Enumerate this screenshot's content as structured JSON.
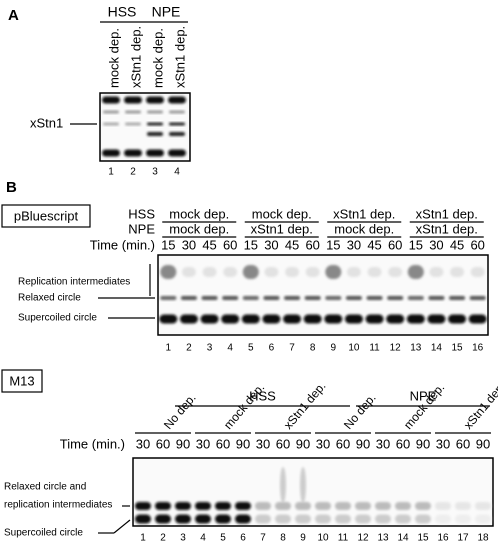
{
  "panel_a": {
    "label": "A",
    "groups": [
      "HSS",
      "NPE"
    ],
    "lanes": [
      "mock dep.",
      "xStn1 dep.",
      "mock dep.",
      "xStn1 dep."
    ],
    "band": "xStn1",
    "lane_numbers": [
      1,
      2,
      3,
      4
    ]
  },
  "panel_b": {
    "label": "B",
    "template": "pBluescript",
    "rows": [
      "HSS",
      "NPE"
    ],
    "conditions": [
      [
        "mock dep.",
        "mock dep."
      ],
      [
        "mock dep.",
        "xStn1 dep."
      ],
      [
        "xStn1 dep.",
        "mock dep."
      ],
      [
        "xStn1 dep.",
        "xStn1 dep."
      ]
    ],
    "time_label": "Time (min.)",
    "times": [
      15,
      30,
      45,
      60
    ],
    "bands": [
      "Replication intermediates",
      "Relaxed circle",
      "Supercoiled circle"
    ],
    "lane_numbers": [
      1,
      2,
      3,
      4,
      5,
      6,
      7,
      8,
      9,
      10,
      11,
      12,
      13,
      14,
      15,
      16
    ]
  },
  "panel_c": {
    "template": "M13",
    "groups": [
      "HSS",
      "NPE"
    ],
    "conditions": [
      "No dep.",
      "mock dep.",
      "xStn1 dep."
    ],
    "time_label": "Time (min.)",
    "times": [
      30,
      60,
      90
    ],
    "bands": [
      "Relaxed circle and",
      "replication intermediates",
      "Supercoiled circle"
    ],
    "lane_numbers": [
      1,
      2,
      3,
      4,
      5,
      6,
      7,
      8,
      9,
      10,
      11,
      12,
      13,
      14,
      15,
      16,
      17,
      18
    ]
  }
}
